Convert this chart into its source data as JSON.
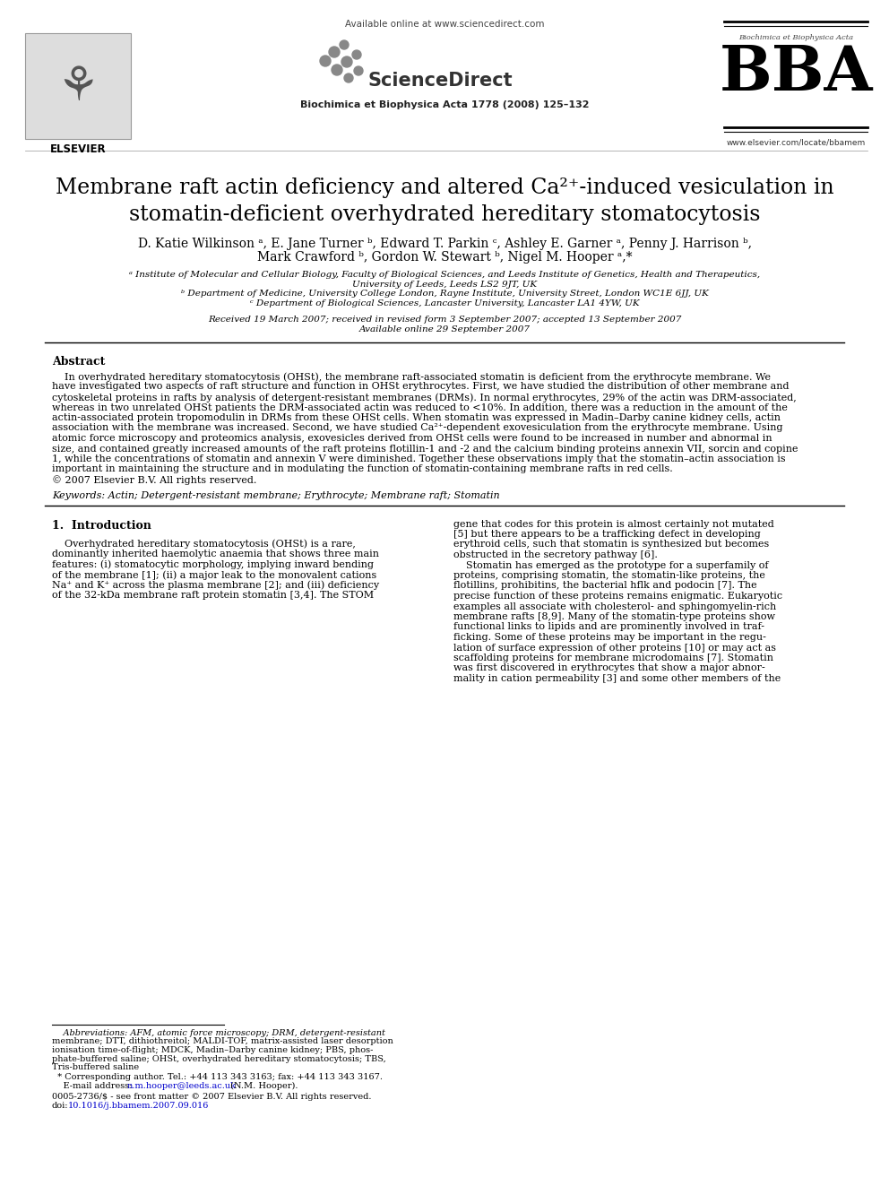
{
  "bg_color": "#ffffff",
  "available_online_text": "Available online at www.sciencedirect.com",
  "journal_header": "Biochimica et Biophysica Acta 1778 (2008) 125–132",
  "bba_url": "www.elsevier.com/locate/bbamem",
  "bba_subtitle": "Biochimica et Biophysica Acta",
  "elsevier_label": "ELSEVIER",
  "title_part1": "Membrane raft actin deficiency and altered Ca",
  "title_super": "2+",
  "title_part2": "-induced vesiculation in",
  "title_line2": "stomatin-deficient overhydrated hereditary stomatocytosis",
  "author_line1": "D. Katie Wilkinson ᵃ, E. Jane Turner ᵇ, Edward T. Parkin ᶜ, Ashley E. Garner ᵃ, Penny J. Harrison ᵇ,",
  "author_line2": "Mark Crawford ᵇ, Gordon W. Stewart ᵇ, Nigel M. Hooper ᵃ,*",
  "affil_a": "ᵃ Institute of Molecular and Cellular Biology, Faculty of Biological Sciences, and Leeds Institute of Genetics, Health and Therapeutics,",
  "affil_a2": "University of Leeds, Leeds LS2 9JT, UK",
  "affil_b": "ᵇ Department of Medicine, University College London, Rayne Institute, University Street, London WC1E 6JJ, UK",
  "affil_c": "ᶜ Department of Biological Sciences, Lancaster University, Lancaster LA1 4YW, UK",
  "received": "Received 19 March 2007; received in revised form 3 September 2007; accepted 13 September 2007",
  "available_online2": "Available online 29 September 2007",
  "abstract_heading": "Abstract",
  "abstract_body": "    In overhydrated hereditary stomatocytosis (OHSt), the membrane raft-associated stomatin is deficient from the erythrocyte membrane. We\nhave investigated two aspects of raft structure and function in OHSt erythrocytes. First, we have studied the distribution of other membrane and\ncytoskeletal proteins in rafts by analysis of detergent-resistant membranes (DRMs). In normal erythrocytes, 29% of the actin was DRM-associated,\nwhereas in two unrelated OHSt patients the DRM-associated actin was reduced to <10%. In addition, there was a reduction in the amount of the\nactin-associated protein tropomodulin in DRMs from these OHSt cells. When stomatin was expressed in Madin–Darby canine kidney cells, actin\nassociation with the membrane was increased. Second, we have studied Ca²⁺-dependent exovesiculation from the erythrocyte membrane. Using\natomic force microscopy and proteomics analysis, exovesicles derived from OHSt cells were found to be increased in number and abnormal in\nsize, and contained greatly increased amounts of the raft proteins flotillin-1 and -2 and the calcium binding proteins annexin VII, sorcin and copine\n1, while the concentrations of stomatin and annexin V were diminished. Together these observations imply that the stomatin–actin association is\nimportant in maintaining the structure and in modulating the function of stomatin-containing membrane rafts in red cells.\n© 2007 Elsevier B.V. All rights reserved.",
  "keywords_line": "Keywords: Actin; Detergent-resistant membrane; Erythrocyte; Membrane raft; Stomatin",
  "intro_heading": "1.  Introduction",
  "intro_left_lines": [
    "    Overhydrated hereditary stomatocytosis (OHSt) is a rare,",
    "dominantly inherited haemolytic anaemia that shows three main",
    "features: (i) stomatocytic morphology, implying inward bending",
    "of the membrane [1]; (ii) a major leak to the monovalent cations",
    "Na⁺ and K⁺ across the plasma membrane [2]; and (iii) deficiency",
    "of the 32-kDa membrane raft protein stomatin [3,4]. The STOM"
  ],
  "intro_right_lines": [
    "gene that codes for this protein is almost certainly not mutated",
    "[5] but there appears to be a trafficking defect in developing",
    "erythroid cells, such that stomatin is synthesized but becomes",
    "obstructed in the secretory pathway [6].",
    "    Stomatin has emerged as the prototype for a superfamily of",
    "proteins, comprising stomatin, the stomatin-like proteins, the",
    "flotillins, prohibitins, the bacterial hflk and podocin [7]. The",
    "precise function of these proteins remains enigmatic. Eukaryotic",
    "examples all associate with cholesterol- and sphingomyelin-rich",
    "membrane rafts [8,9]. Many of the stomatin-type proteins show",
    "functional links to lipids and are prominently involved in traf-",
    "ficking. Some of these proteins may be important in the regu-",
    "lation of surface expression of other proteins [10] or may act as",
    "scaffolding proteins for membrane microdomains [7]. Stomatin",
    "was first discovered in erythrocytes that show a major abnor-",
    "mality in cation permeability [3] and some other members of the"
  ],
  "fn_abbrev_lines": [
    "    Abbreviations: AFM, atomic force microscopy; DRM, detergent-resistant",
    "membrane; DTT, dithiothreitol; MALDI-TOF, matrix-assisted laser desorption",
    "ionisation time-of-flight; MDCK, Madin–Darby canine kidney; PBS, phos-",
    "phate-buffered saline; OHSt, overhydrated hereditary stomatocytosis; TBS,",
    "Tris-buffered saline"
  ],
  "fn_star": "  * Corresponding author. Tel.: +44 113 343 3163; fax: +44 113 343 3167.",
  "fn_email": "    E-mail address: n.m.hooper@leeds.ac.uk (N.M. Hooper).",
  "fn_issn": "0005-2736/$ - see front matter © 2007 Elsevier B.V. All rights reserved.",
  "fn_doi": "doi:10.1016/j.bbamem.2007.09.016",
  "link_color": "#0000cc"
}
